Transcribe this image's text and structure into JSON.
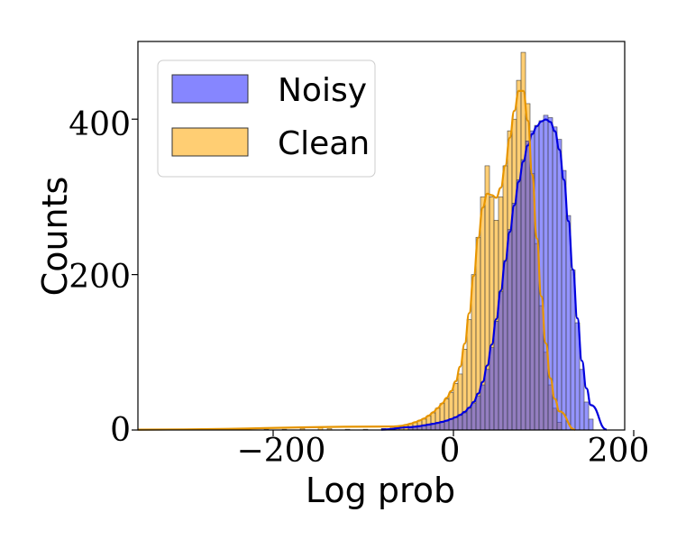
{
  "chart_data": {
    "type": "histogram",
    "xlabel": "Log prob",
    "ylabel": "Counts",
    "xlim": [
      -350,
      190
    ],
    "ylim": [
      0,
      500
    ],
    "xticks": [
      -200,
      0,
      200
    ],
    "yticks": [
      0,
      200,
      400
    ],
    "xtick_labels": [
      "−200",
      "0",
      "200"
    ],
    "ytick_labels": [
      "0",
      "200",
      "400"
    ],
    "grid": false,
    "legend": "top-left",
    "series": [
      {
        "name": "Noisy",
        "color": "#0000ff",
        "bin_start": -50,
        "bin_width": 5,
        "counts": [
          3,
          4,
          5,
          6,
          7,
          8,
          9,
          10,
          12,
          14,
          16,
          19,
          22,
          28,
          34,
          44,
          58,
          78,
          106,
          140,
          178,
          218,
          258,
          292,
          322,
          348,
          372,
          385,
          392,
          398,
          405,
          402,
          390,
          374,
          334,
          276,
          206,
          138,
          78,
          36,
          14
        ],
        "kde_color": "#0000dd"
      },
      {
        "name": "Clean",
        "color": "#ffa500",
        "bin_start": -70,
        "bin_width": 5,
        "counts": [
          4,
          5,
          5,
          6,
          8,
          10,
          12,
          14,
          18,
          22,
          28,
          34,
          40,
          48,
          60,
          72,
          104,
          142,
          200,
          248,
          300,
          340,
          300,
          270,
          300,
          340,
          385,
          400,
          450,
          486,
          420,
          330,
          240,
          160,
          100,
          58,
          28,
          10
        ],
        "kde_color": "#e69500"
      }
    ],
    "sparse_tail": {
      "x": [
        -345,
        -320,
        -280,
        -255,
        -230,
        -210,
        -190,
        -170,
        -150,
        -140,
        -120,
        -100,
        -80
      ],
      "counts": [
        1,
        0,
        1,
        1,
        2,
        1,
        1,
        2,
        3,
        2,
        1,
        1,
        2
      ]
    }
  }
}
